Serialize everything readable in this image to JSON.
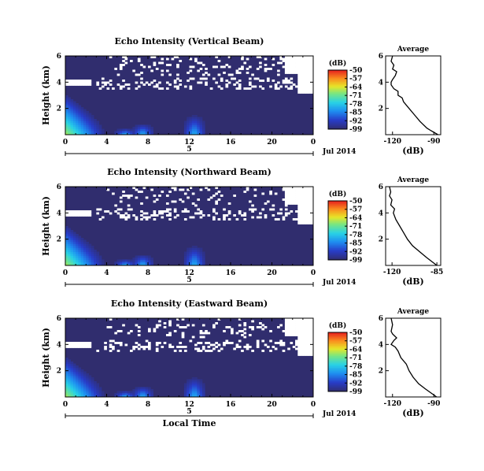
{
  "chart_data": [
    {
      "type": "heatmap",
      "title": "Echo Intensity (Vertical Beam)",
      "xlabel": "",
      "ylabel": "Height (km)",
      "x_ticks": [
        "0",
        "4",
        "8",
        "12",
        "16",
        "20",
        "0"
      ],
      "y_ticks": [
        "6",
        "4",
        "2"
      ],
      "date_ticks": [
        "5"
      ],
      "date_label": "Jul 2014",
      "colorbar": {
        "unit": "(dB)",
        "ticks": [
          "-50",
          "-57",
          "-64",
          "-71",
          "-78",
          "-85",
          "-92",
          "-99"
        ]
      },
      "xlim": [
        0,
        24
      ],
      "ylim": [
        0,
        6
      ],
      "clim": [
        -99,
        -50
      ],
      "average": {
        "title": "Average",
        "xlabel": "(dB)",
        "x_ticks": [
          "-120",
          "-90"
        ],
        "y_ticks": [
          "6",
          "4",
          "2"
        ],
        "xlim": [
          -125,
          -85
        ],
        "height": [
          0.0,
          0.3,
          0.5,
          1.0,
          1.5,
          2.0,
          2.5,
          2.8,
          3.0,
          3.3,
          3.5,
          3.8,
          4.0,
          4.2,
          4.5,
          4.8,
          5.0,
          5.3,
          5.6,
          6.0
        ],
        "value": [
          -87,
          -92,
          -95,
          -100,
          -104,
          -108,
          -112,
          -113,
          -116,
          -116,
          -119,
          -121,
          -121,
          -120,
          -118,
          -117,
          -120,
          -119,
          -121,
          -120
        ]
      }
    },
    {
      "type": "heatmap",
      "title": "Echo Intensity (Northward Beam)",
      "xlabel": "",
      "ylabel": "Height (km)",
      "x_ticks": [
        "0",
        "4",
        "8",
        "12",
        "16",
        "20",
        "0"
      ],
      "y_ticks": [
        "6",
        "4",
        "2"
      ],
      "date_ticks": [
        "5"
      ],
      "date_label": "Jul 2014",
      "colorbar": {
        "unit": "(dB)",
        "ticks": [
          "-50",
          "-57",
          "-64",
          "-71",
          "-78",
          "-85",
          "-92",
          "-99"
        ]
      },
      "xlim": [
        0,
        24
      ],
      "ylim": [
        0,
        6
      ],
      "clim": [
        -99,
        -50
      ],
      "average": {
        "title": "Average",
        "xlabel": "(dB)",
        "x_ticks": [
          "-120",
          "-85"
        ],
        "y_ticks": [
          "6",
          "4",
          "2"
        ],
        "xlim": [
          -125,
          -82
        ],
        "height": [
          0.0,
          0.3,
          0.6,
          1.0,
          1.5,
          2.0,
          2.5,
          3.0,
          3.5,
          4.0,
          4.3,
          4.6,
          5.0,
          5.3,
          5.6,
          6.0
        ],
        "value": [
          -85,
          -89,
          -93,
          -98,
          -104,
          -108,
          -111,
          -114,
          -117,
          -119,
          -118,
          -121,
          -120,
          -122,
          -121,
          -122
        ]
      }
    },
    {
      "type": "heatmap",
      "title": "Echo Intensity (Eastward Beam)",
      "xlabel": "Local Time",
      "ylabel": "Height (km)",
      "x_ticks": [
        "0",
        "4",
        "8",
        "12",
        "16",
        "20",
        "0"
      ],
      "y_ticks": [
        "6",
        "4",
        "2"
      ],
      "date_ticks": [
        "5"
      ],
      "date_label": "Jul 2014",
      "colorbar": {
        "unit": "(dB)",
        "ticks": [
          "-50",
          "-57",
          "-64",
          "-71",
          "-78",
          "-85",
          "-92",
          "-99"
        ]
      },
      "xlim": [
        0,
        24
      ],
      "ylim": [
        0,
        6
      ],
      "clim": [
        -99,
        -50
      ],
      "average": {
        "title": "Average",
        "xlabel": "(dB)",
        "x_ticks": [
          "-120",
          "-90"
        ],
        "y_ticks": [
          "6",
          "4",
          "2"
        ],
        "xlim": [
          -125,
          -85
        ],
        "height": [
          0.0,
          0.3,
          0.6,
          1.0,
          1.5,
          2.0,
          2.5,
          3.0,
          3.5,
          3.8,
          4.0,
          4.3,
          4.5,
          4.8,
          5.0,
          5.5,
          6.0
        ],
        "value": [
          -88,
          -92,
          -96,
          -101,
          -105,
          -108,
          -110,
          -114,
          -116,
          -118,
          -121,
          -119,
          -117,
          -120,
          -121,
          -120,
          -121
        ]
      }
    }
  ]
}
